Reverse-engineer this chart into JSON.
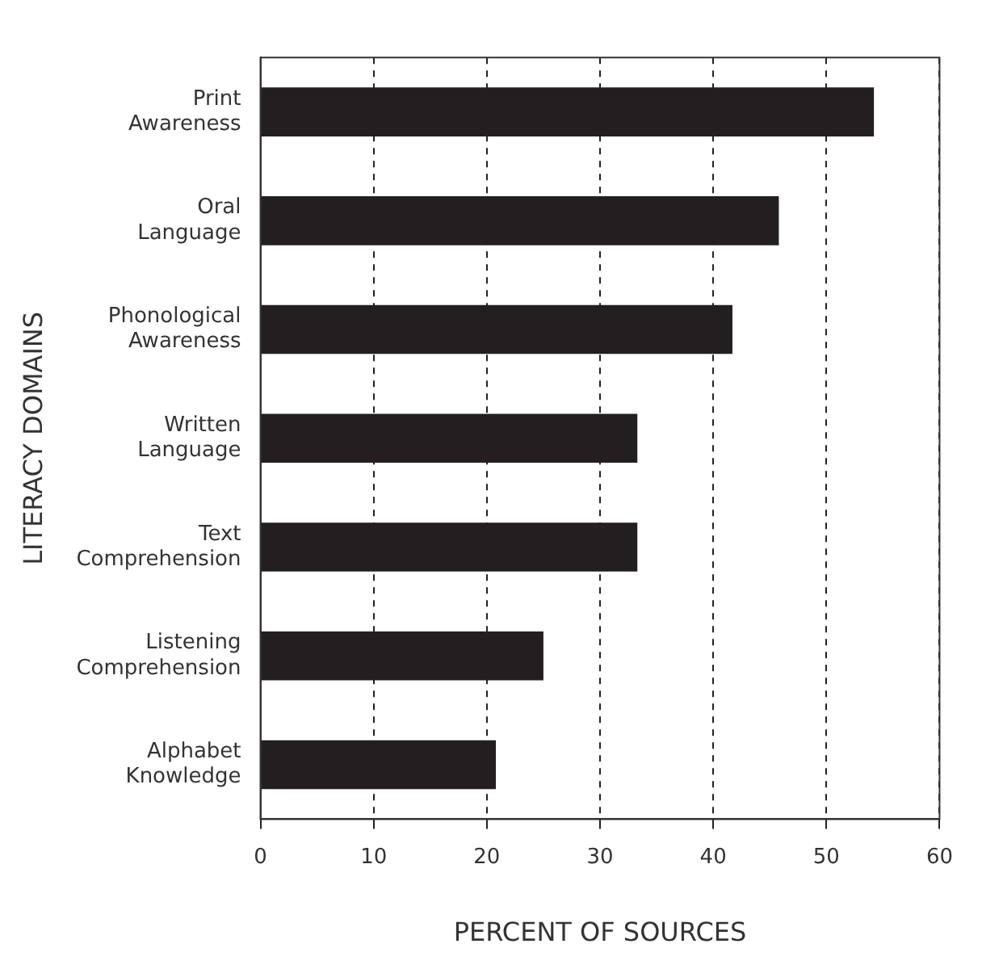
{
  "chart_data": {
    "type": "bar",
    "orientation": "horizontal",
    "categories": [
      "Print Awareness",
      "Oral Language",
      "Phonological Awareness",
      "Written Language",
      "Text Comprehension",
      "Listening Comprehension",
      "Alphabet Knowledge"
    ],
    "values": [
      54.2,
      45.8,
      41.7,
      33.3,
      33.3,
      25,
      20.8
    ],
    "color": "#231f20",
    "xlabel": "PERCENT OF SOURCES",
    "ylabel": "LITERACY DOMAINS",
    "xlim": [
      0,
      60
    ],
    "xticks": [
      0,
      10,
      20,
      30,
      40,
      50,
      60
    ],
    "grid": "x",
    "legend": false
  }
}
